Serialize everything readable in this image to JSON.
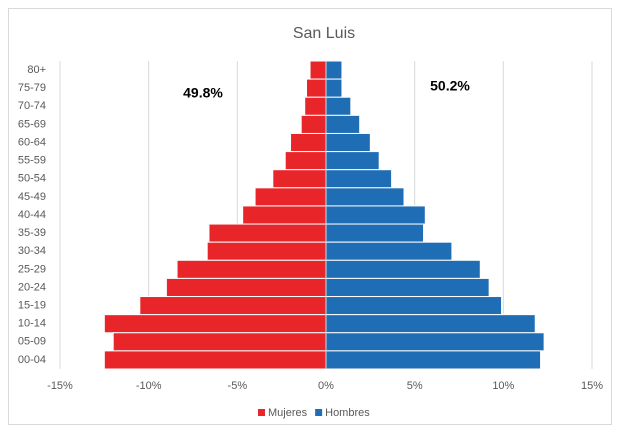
{
  "chart_data": {
    "type": "pyramid",
    "title": "San Luis",
    "categories": [
      "80+",
      "75-79",
      "70-74",
      "65-69",
      "60-64",
      "55-59",
      "50-54",
      "45-49",
      "40-44",
      "35-39",
      "30-34",
      "25-29",
      "20-24",
      "15-19",
      "10-14",
      "05-09",
      "00-04"
    ],
    "series": [
      {
        "name": "Mujeres",
        "color": "#e8262a",
        "values": [
          -0.9,
          -1.1,
          -1.2,
          -1.4,
          -2.0,
          -2.3,
          -3.0,
          -4.0,
          -4.7,
          -6.6,
          -6.7,
          -8.4,
          -9.0,
          -10.5,
          -12.5,
          -12.0,
          -12.5
        ]
      },
      {
        "name": "Hombres",
        "color": "#1f6db5",
        "values": [
          0.9,
          0.9,
          1.4,
          1.9,
          2.5,
          3.0,
          3.7,
          4.4,
          5.6,
          5.5,
          7.1,
          8.7,
          9.2,
          9.9,
          11.8,
          12.3,
          12.1
        ]
      }
    ],
    "xlim": [
      -15,
      15
    ],
    "xticks": [
      {
        "value": -15,
        "label": "-15%"
      },
      {
        "value": -10,
        "label": "-10%"
      },
      {
        "value": -5,
        "label": "-5%"
      },
      {
        "value": 0,
        "label": "0%"
      },
      {
        "value": 5,
        "label": "5%"
      },
      {
        "value": 10,
        "label": "10%"
      },
      {
        "value": 15,
        "label": "15%"
      }
    ],
    "annotations": [
      "49.8%",
      "50.2%"
    ],
    "grid": true,
    "legend": "bottom"
  }
}
